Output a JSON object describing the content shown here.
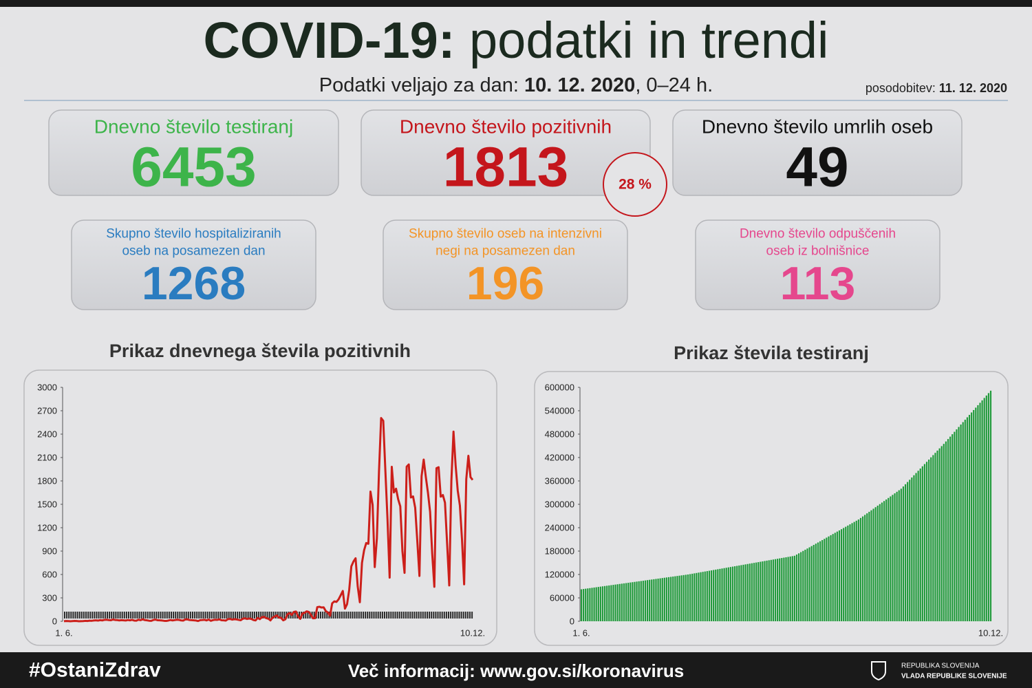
{
  "header": {
    "title_bold": "COVID-19:",
    "title_rest": " podatki in trendi",
    "date_prefix": "Podatki veljajo za dan: ",
    "date": "10. 12. 2020",
    "date_suffix": ", 0–24 h.",
    "update_prefix": "posodobitev: ",
    "update_date": "11. 12. 2020"
  },
  "cards": [
    {
      "label": [
        "Dnevno število testiranj"
      ],
      "value": 6453,
      "color": "#3db44a"
    },
    {
      "label": [
        "Dnevno število pozitivnih"
      ],
      "value": 1813,
      "color": "#c4161c"
    },
    {
      "label": [
        "Dnevno število umrlih oseb"
      ],
      "value": 49,
      "color": "#111111"
    },
    {
      "label": [
        "Skupno število hospitaliziranih",
        "oseb na posamezen dan"
      ],
      "value": 1268,
      "color": "#2a7cc0"
    },
    {
      "label": [
        "Skupno število oseb na intenzivni",
        "negi na posamezen dan"
      ],
      "value": 196,
      "color": "#f39426"
    },
    {
      "label": [
        "Dnevno število odpuščenih",
        "oseb iz bolnišnice"
      ],
      "value": 113,
      "color": "#e5478d"
    }
  ],
  "ratio": "28 %",
  "chart_data": [
    {
      "type": "line",
      "title": "Prikaz dnevnega števila pozitivnih",
      "color": "#cc1f1a",
      "ylim": [
        0,
        3000
      ],
      "yticks": [
        0,
        300,
        600,
        900,
        1200,
        1500,
        1800,
        2100,
        2400,
        2700,
        3000
      ],
      "categories": [
        "1. 6.",
        null,
        null,
        null,
        null,
        null,
        null,
        null,
        null,
        null,
        null,
        null,
        null,
        null,
        null,
        null,
        null,
        null,
        null,
        null,
        null,
        null,
        null,
        null,
        null,
        null,
        null,
        null,
        null,
        null,
        null,
        null,
        null,
        null,
        null,
        null,
        null,
        null,
        null,
        null,
        null,
        null,
        null,
        null,
        null,
        null,
        null,
        null,
        null,
        null,
        null,
        null,
        null,
        null,
        null,
        null,
        null,
        null,
        null,
        null,
        null,
        null,
        null,
        null,
        null,
        null,
        null,
        null,
        null,
        null,
        null,
        null,
        null,
        null,
        null,
        null,
        null,
        null,
        null,
        null,
        null,
        null,
        null,
        null,
        null,
        null,
        null,
        null,
        null,
        null,
        null,
        null,
        null,
        null,
        null,
        null,
        null,
        null,
        null,
        null,
        null,
        null,
        null,
        null,
        null,
        null,
        null,
        null,
        null,
        null,
        null,
        null,
        null,
        null,
        null,
        null,
        null,
        null,
        null,
        null,
        null,
        null,
        null,
        null,
        null,
        null,
        null,
        null,
        null,
        null,
        null,
        null,
        null,
        null,
        null,
        null,
        null,
        null,
        null,
        null,
        null,
        null,
        null,
        null,
        null,
        null,
        null,
        null,
        null,
        null,
        null,
        null,
        null,
        null,
        null,
        null,
        null,
        null,
        null,
        null,
        null,
        null,
        null,
        null,
        null,
        null,
        null,
        null,
        null,
        null,
        null,
        null,
        null,
        null,
        null,
        null,
        null,
        null,
        null,
        null,
        null,
        null,
        null,
        null,
        null,
        null,
        null,
        null,
        null,
        null,
        null,
        null,
        "10.12."
      ],
      "values": [
        1,
        3,
        2,
        0,
        2,
        4,
        3,
        0,
        1,
        2,
        5,
        3,
        8,
        6,
        10,
        12,
        9,
        14,
        11,
        18,
        20,
        15,
        13,
        22,
        17,
        15,
        11,
        14,
        12,
        10,
        16,
        12,
        18,
        9,
        8,
        20,
        14,
        25,
        15,
        12,
        7,
        5,
        17,
        21,
        13,
        12,
        10,
        6,
        4,
        9,
        16,
        11,
        15,
        20,
        18,
        11,
        9,
        23,
        24,
        16,
        14,
        12,
        10,
        3,
        14,
        16,
        19,
        11,
        22,
        6,
        15,
        20,
        18,
        24,
        13,
        12,
        9,
        27,
        30,
        21,
        26,
        24,
        18,
        13,
        32,
        38,
        29,
        35,
        30,
        16,
        11,
        43,
        27,
        53,
        56,
        40,
        33,
        11,
        47,
        61,
        75,
        47,
        44,
        12,
        25,
        89,
        105,
        82,
        119,
        125,
        61,
        31,
        100,
        108,
        127,
        120,
        83,
        38,
        40,
        181,
        186,
        176,
        179,
        130,
        112,
        72,
        230,
        255,
        248,
        281,
        334,
        389,
        162,
        220,
        402,
        704,
        766,
        808,
        446,
        244,
        749,
        911,
        1003,
        994,
        1663,
        1494,
        695,
        1063,
        1924,
        2606,
        2571,
        1925,
        1304,
        560,
        1981,
        1652,
        1700,
        1565,
        1474,
        900,
        621,
        1983,
        2011,
        1588,
        1601,
        1456,
        1025,
        581,
        1860,
        2074,
        1849,
        1649,
        1404,
        867,
        442,
        1963,
        1976,
        1598,
        1619,
        1521,
        995,
        460,
        1800,
        2432,
        1998,
        1674,
        1484,
        1047,
        474,
        1822,
        2122,
        1848,
        1813
      ]
    },
    {
      "type": "bar",
      "title": "Prikaz števila testiranj",
      "color": "#1f9a3a",
      "ylim": [
        0,
        600000
      ],
      "yticks": [
        0,
        60000,
        120000,
        180000,
        240000,
        300000,
        360000,
        420000,
        480000,
        540000,
        600000
      ],
      "categories": [
        "1. 6.",
        null,
        null,
        null,
        null,
        null,
        null,
        null,
        null,
        null,
        null,
        null,
        null,
        null,
        null,
        null,
        null,
        null,
        null,
        null,
        null,
        null,
        null,
        null,
        null,
        null,
        null,
        null,
        null,
        null,
        null,
        null,
        null,
        null,
        null,
        null,
        null,
        null,
        null,
        null,
        null,
        null,
        null,
        null,
        null,
        null,
        null,
        null,
        null,
        null,
        null,
        null,
        null,
        null,
        null,
        null,
        null,
        null,
        null,
        null,
        null,
        null,
        null,
        null,
        null,
        null,
        null,
        null,
        null,
        null,
        null,
        null,
        null,
        null,
        null,
        null,
        null,
        null,
        null,
        null,
        null,
        null,
        null,
        null,
        null,
        null,
        null,
        null,
        null,
        null,
        null,
        null,
        null,
        null,
        null,
        null,
        null,
        null,
        null,
        null,
        null,
        null,
        null,
        null,
        null,
        null,
        null,
        null,
        null,
        null,
        null,
        null,
        null,
        null,
        null,
        null,
        null,
        null,
        null,
        null,
        null,
        null,
        null,
        null,
        null,
        null,
        null,
        null,
        null,
        null,
        null,
        null,
        null,
        null,
        null,
        null,
        null,
        null,
        null,
        null,
        null,
        null,
        null,
        null,
        null,
        null,
        null,
        null,
        null,
        null,
        null,
        null,
        null,
        null,
        null,
        null,
        null,
        null,
        null,
        null,
        null,
        null,
        null,
        null,
        null,
        null,
        null,
        null,
        null,
        null,
        null,
        null,
        null,
        null,
        null,
        null,
        null,
        null,
        null,
        null,
        null,
        null,
        null,
        null,
        null,
        null,
        null,
        null,
        null,
        null,
        null,
        null,
        "10.12."
      ],
      "values": [
        82000,
        82760,
        83520,
        84280,
        85040,
        85800,
        86560,
        87320,
        88080,
        88840,
        89600,
        90360,
        91120,
        91880,
        92640,
        93400,
        94160,
        94920,
        95680,
        96440,
        97200,
        97960,
        98720,
        99480,
        100240,
        101000,
        101760,
        102520,
        103280,
        104040,
        104800,
        105560,
        106320,
        107080,
        107840,
        108600,
        109360,
        110120,
        110880,
        111640,
        112400,
        113160,
        113920,
        114680,
        115440,
        116200,
        116960,
        117720,
        118480,
        119240,
        120000,
        120960,
        121920,
        122880,
        123840,
        124800,
        125760,
        126720,
        127680,
        128640,
        129600,
        130560,
        131520,
        132480,
        133440,
        134400,
        135360,
        136320,
        137280,
        138240,
        139200,
        140160,
        141120,
        142080,
        143040,
        144000,
        144960,
        145920,
        146880,
        147840,
        148800,
        149760,
        150720,
        151680,
        152640,
        153600,
        154560,
        155520,
        156480,
        157440,
        158400,
        159360,
        160320,
        161280,
        162240,
        163200,
        164160,
        165120,
        166080,
        167040,
        168000,
        171100,
        174200,
        177300,
        180400,
        183500,
        186600,
        189700,
        192800,
        195900,
        199000,
        202100,
        205200,
        208300,
        211400,
        214500,
        217600,
        220700,
        223800,
        226900,
        230000,
        233100,
        236200,
        239300,
        242400,
        245500,
        248600,
        251700,
        254800,
        257900,
        261000,
        264950,
        268900,
        272850,
        276800,
        280750,
        284700,
        288650,
        292600,
        296550,
        300500,
        304450,
        308400,
        312350,
        316300,
        320250,
        324200,
        328150,
        332100,
        336050,
        340000,
        345750,
        351500,
        357250,
        363000,
        368750,
        374500,
        380250,
        386000,
        391750,
        397500,
        403250,
        409000,
        414750,
        420500,
        426250,
        432000,
        437750,
        443500,
        449250,
        455000,
        461200,
        467400,
        473600,
        479800,
        486000,
        492200,
        498400,
        504600,
        510800,
        517000,
        523200,
        529400,
        535600,
        541800,
        548000,
        554200,
        560400,
        566600,
        572800,
        579000,
        585200,
        591400
      ]
    }
  ],
  "footer": {
    "hashtag": "#OstaniZdrav",
    "info": "Več informacij: www.gov.si/koronavirus",
    "org1": "REPUBLIKA SLOVENIJA",
    "org2": "VLADA REPUBLIKE SLOVENIJE"
  }
}
